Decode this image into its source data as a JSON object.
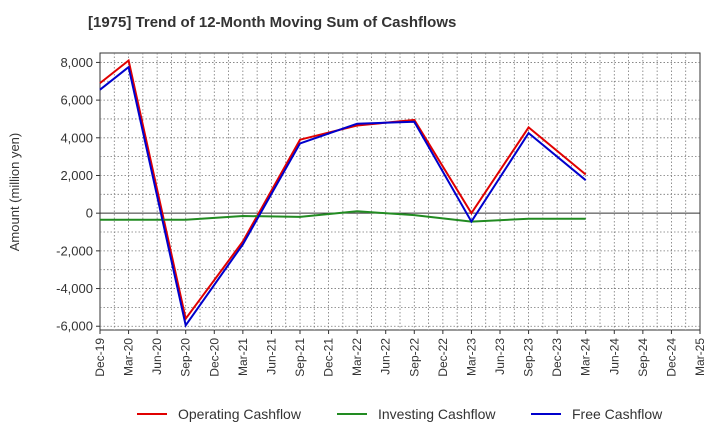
{
  "chart_data": {
    "type": "line",
    "title": "[1975]  Trend of 12-Month Moving Sum of Cashflows",
    "ylabel": "Amount (million yen)",
    "xlabel": "",
    "categories": [
      "Dec-19",
      "Mar-20",
      "Jun-20",
      "Sep-20",
      "Dec-20",
      "Mar-21",
      "Jun-21",
      "Sep-21",
      "Dec-21",
      "Mar-22",
      "Jun-22",
      "Sep-22",
      "Dec-22",
      "Mar-23",
      "Jun-23",
      "Sep-23",
      "Dec-23",
      "Mar-24",
      "Jun-24",
      "Sep-24",
      "Dec-24",
      "Mar-25"
    ],
    "yticks": [
      8000,
      6000,
      4000,
      2000,
      0,
      -2000,
      -4000,
      -6000
    ],
    "ytick_labels": [
      "8,000",
      "6,000",
      "4,000",
      "2,000",
      "0",
      "-2,000",
      "-4,000",
      "-6,000"
    ],
    "ylim": [
      -6200,
      8500
    ],
    "grid": true,
    "legend_position": "bottom",
    "series": [
      {
        "name": "Operating Cashflow",
        "color": "#e00000",
        "values": [
          6900,
          8100,
          null,
          -5600,
          null,
          -1500,
          null,
          3900,
          null,
          4650,
          null,
          4950,
          null,
          0,
          null,
          4550,
          null,
          2050,
          null,
          null,
          null,
          null
        ]
      },
      {
        "name": "Investing Cashflow",
        "color": "#228b22",
        "values": [
          -350,
          -350,
          null,
          -350,
          null,
          -150,
          null,
          -200,
          null,
          100,
          null,
          -100,
          null,
          -450,
          null,
          -300,
          null,
          -300,
          null,
          null,
          null,
          null
        ]
      },
      {
        "name": "Free Cashflow",
        "color": "#0000cc",
        "values": [
          6550,
          7750,
          null,
          -5950,
          null,
          -1650,
          null,
          3700,
          null,
          4750,
          null,
          4850,
          null,
          -450,
          null,
          4250,
          null,
          1750,
          null,
          null,
          null,
          null
        ]
      }
    ]
  }
}
